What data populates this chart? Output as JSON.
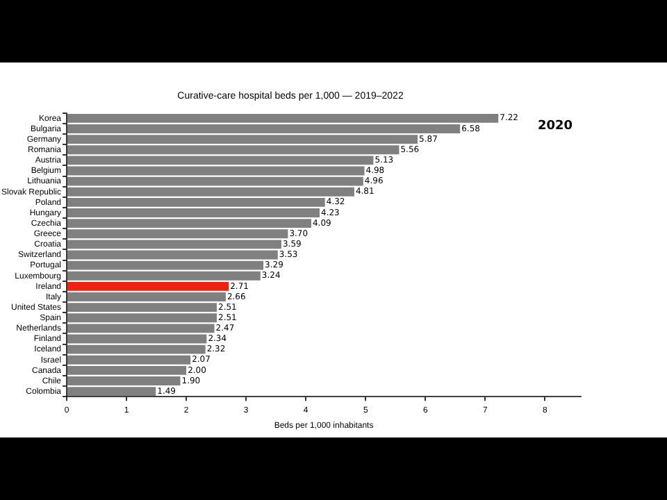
{
  "chart_data": {
    "type": "bar",
    "orientation": "horizontal",
    "title": "Curative-care hospital beds per 1,000 — 2019–2022",
    "xlabel": "Beds per 1,000 inhabitants",
    "categories": [
      "Korea",
      "Bulgaria",
      "Germany",
      "Romania",
      "Austria",
      "Belgium",
      "Lithuania",
      "Slovak Republic",
      "Poland",
      "Hungary",
      "Czechia",
      "Greece",
      "Croatia",
      "Switzerland",
      "Portugal",
      "Luxembourg",
      "Ireland",
      "Italy",
      "United States",
      "Spain",
      "Netherlands",
      "Finland",
      "Iceland",
      "Israel",
      "Canada",
      "Chile",
      "Colombia"
    ],
    "values": [
      7.22,
      6.58,
      5.87,
      5.56,
      5.13,
      4.98,
      4.96,
      4.81,
      4.32,
      4.23,
      4.09,
      3.7,
      3.59,
      3.53,
      3.29,
      3.24,
      2.71,
      2.66,
      2.51,
      2.51,
      2.47,
      2.34,
      2.32,
      2.07,
      2.0,
      1.9,
      1.49
    ],
    "colors": [
      "#808080",
      "#808080",
      "#808080",
      "#808080",
      "#808080",
      "#808080",
      "#808080",
      "#808080",
      "#808080",
      "#808080",
      "#808080",
      "#808080",
      "#808080",
      "#808080",
      "#808080",
      "#808080",
      "#ee2211",
      "#808080",
      "#808080",
      "#808080",
      "#808080",
      "#808080",
      "#808080",
      "#808080",
      "#808080",
      "#808080",
      "#808080"
    ],
    "xlim": [
      0,
      8.6
    ],
    "xticks": [
      0,
      1,
      2,
      3,
      4,
      5,
      6,
      7,
      8
    ],
    "value_labels": [
      "7.22",
      "6.58",
      "5.87",
      "5.56",
      "5.13",
      "4.98",
      "4.96",
      "4.81",
      "4.32",
      "4.23",
      "4.09",
      "3.70",
      "3.59",
      "3.53",
      "3.29",
      "3.24",
      "2.71",
      "2.66",
      "2.51",
      "2.51",
      "2.47",
      "2.34",
      "2.32",
      "2.07",
      "2.00",
      "1.90",
      "1.49"
    ],
    "annotations": [
      "2020"
    ],
    "grid": false,
    "legend": false
  }
}
